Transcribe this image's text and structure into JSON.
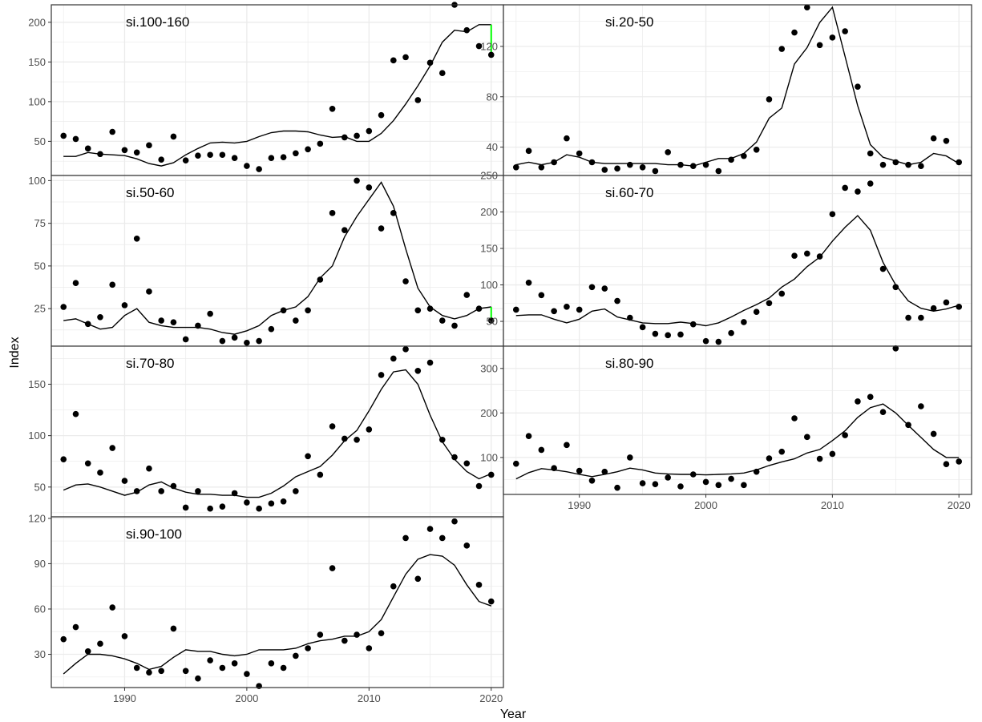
{
  "figure": {
    "xlabel": "Year",
    "ylabel": "Index"
  },
  "colors": {
    "points": "#000000",
    "fit_line": "#000000",
    "residual_segment": "#00ff00",
    "grid": "#ebebeb",
    "panel_border": "#333333"
  },
  "chart_data": [
    {
      "type": "scatter",
      "title": "si.100-160",
      "xlim": [
        1984,
        2021
      ],
      "ylim": [
        7,
        222
      ],
      "y_ticks": [
        50,
        100,
        150,
        200
      ],
      "x_ticks": [
        1990,
        2000,
        2010,
        2020
      ],
      "x": [
        1985,
        1986,
        1987,
        1988,
        1989,
        1990,
        1991,
        1992,
        1993,
        1994,
        1995,
        1996,
        1997,
        1998,
        1999,
        2000,
        2001,
        2002,
        2003,
        2004,
        2005,
        2006,
        2007,
        2008,
        2009,
        2010,
        2011,
        2012,
        2013,
        2014,
        2015,
        2016,
        2017,
        2018,
        2019,
        2020
      ],
      "series": [
        {
          "kind": "points",
          "values": [
            57,
            53,
            41,
            34,
            62,
            39,
            36,
            45,
            27,
            56,
            26,
            32,
            33,
            33,
            29,
            19,
            15,
            29,
            30,
            35,
            40,
            47,
            91,
            55,
            57,
            63,
            83,
            152,
            156,
            102,
            149,
            136,
            222,
            190,
            170,
            159
          ]
        },
        {
          "kind": "line",
          "values": [
            31,
            31,
            36,
            34,
            33,
            32,
            28,
            22,
            19,
            23,
            33,
            41,
            48,
            49,
            48,
            50,
            56,
            61,
            63,
            63,
            62,
            58,
            55,
            56,
            50,
            50,
            60,
            76,
            97,
            120,
            145,
            175,
            190,
            188,
            197,
            197
          ]
        }
      ],
      "highlight": {
        "x": 2020,
        "from": 197,
        "to": 159
      }
    },
    {
      "type": "scatter",
      "title": "si.20-50",
      "xlim": [
        1984,
        2021
      ],
      "ylim": [
        17.5,
        153
      ],
      "y_ticks": [
        40,
        80,
        120
      ],
      "x_ticks": [
        1990,
        2000,
        2010,
        2020
      ],
      "x": [
        1985,
        1986,
        1987,
        1988,
        1989,
        1990,
        1991,
        1992,
        1993,
        1994,
        1995,
        1996,
        1997,
        1998,
        1999,
        2000,
        2001,
        2002,
        2003,
        2004,
        2005,
        2006,
        2007,
        2008,
        2009,
        2010,
        2011,
        2012,
        2013,
        2014,
        2015,
        2016,
        2017,
        2018,
        2019,
        2020
      ],
      "series": [
        {
          "kind": "points",
          "values": [
            24,
            37,
            24,
            28,
            47,
            35,
            28,
            22,
            23,
            26,
            24,
            21,
            36,
            26,
            25,
            26,
            21,
            30,
            33,
            38,
            78,
            118,
            131,
            151,
            121,
            127,
            132,
            88,
            35,
            26,
            28,
            26,
            25,
            47,
            45,
            28
          ]
        },
        {
          "kind": "line",
          "values": [
            26,
            28,
            26,
            28,
            34,
            32,
            28,
            27,
            27,
            27,
            27,
            27,
            26,
            26,
            25,
            28,
            31,
            31,
            35,
            44,
            63,
            71,
            106,
            119,
            139,
            151,
            112,
            73,
            42,
            32,
            29,
            26,
            28,
            35,
            33,
            27
          ]
        }
      ]
    },
    {
      "type": "scatter",
      "title": "si.50-60",
      "xlim": [
        1984,
        2021
      ],
      "ylim": [
        3,
        103
      ],
      "y_ticks": [
        25,
        50,
        75,
        100
      ],
      "x_ticks": [
        1990,
        2000,
        2010,
        2020
      ],
      "x": [
        1985,
        1986,
        1987,
        1988,
        1989,
        1990,
        1991,
        1992,
        1993,
        1994,
        1995,
        1996,
        1997,
        1998,
        1999,
        2000,
        2001,
        2002,
        2003,
        2004,
        2005,
        2006,
        2007,
        2008,
        2009,
        2010,
        2011,
        2012,
        2013,
        2014,
        2015,
        2016,
        2017,
        2018,
        2019,
        2020
      ],
      "series": [
        {
          "kind": "points",
          "values": [
            26,
            40,
            16,
            20,
            39,
            27,
            66,
            35,
            18,
            17,
            7,
            15,
            22,
            6,
            8,
            5,
            6,
            13,
            24,
            18,
            24,
            42,
            81,
            71,
            100,
            96,
            72,
            81,
            41,
            24,
            25,
            18,
            15,
            33,
            25,
            18
          ]
        },
        {
          "kind": "line",
          "values": [
            18,
            19,
            16,
            13,
            14,
            21,
            25,
            17,
            15,
            14,
            14,
            14,
            13,
            11,
            10,
            12,
            15,
            21,
            24,
            26,
            32,
            43,
            50,
            67,
            79,
            89,
            99,
            85,
            60,
            37,
            26,
            21,
            19,
            21,
            25,
            26
          ]
        }
      ],
      "highlight": {
        "x": 2020,
        "from": 26,
        "to": 18
      }
    },
    {
      "type": "scatter",
      "title": "si.60-70",
      "xlim": [
        1984,
        2021
      ],
      "ylim": [
        16,
        250
      ],
      "y_ticks": [
        50,
        100,
        150,
        200,
        250
      ],
      "x_ticks": [
        1990,
        2000,
        2010,
        2020
      ],
      "x": [
        1985,
        1986,
        1987,
        1988,
        1989,
        1990,
        1991,
        1992,
        1993,
        1994,
        1995,
        1996,
        1997,
        1998,
        1999,
        2000,
        2001,
        2002,
        2003,
        2004,
        2005,
        2006,
        2007,
        2008,
        2009,
        2010,
        2011,
        2012,
        2013,
        2014,
        2015,
        2016,
        2017,
        2018,
        2019,
        2020
      ],
      "series": [
        {
          "kind": "points",
          "values": [
            66,
            103,
            86,
            64,
            70,
            66,
            97,
            95,
            78,
            55,
            42,
            33,
            31,
            32,
            46,
            23,
            22,
            34,
            49,
            63,
            75,
            88,
            140,
            143,
            139,
            197,
            233,
            228,
            239,
            122,
            97,
            55,
            55,
            68,
            76,
            70
          ]
        },
        {
          "kind": "line",
          "values": [
            58,
            59,
            59,
            53,
            48,
            53,
            64,
            67,
            56,
            52,
            48,
            47,
            47,
            49,
            47,
            44,
            48,
            56,
            65,
            73,
            82,
            97,
            108,
            125,
            138,
            160,
            179,
            195,
            175,
            131,
            100,
            78,
            68,
            64,
            67,
            72
          ]
        }
      ]
    },
    {
      "type": "scatter",
      "title": "si.70-80",
      "xlim": [
        1984,
        2021
      ],
      "ylim": [
        21,
        187
      ],
      "y_ticks": [
        50,
        100,
        150
      ],
      "x_ticks": [
        1990,
        2000,
        2010,
        2020
      ],
      "x": [
        1985,
        1986,
        1987,
        1988,
        1989,
        1990,
        1991,
        1992,
        1993,
        1994,
        1995,
        1996,
        1997,
        1998,
        1999,
        2000,
        2001,
        2002,
        2003,
        2004,
        2005,
        2006,
        2007,
        2008,
        2009,
        2010,
        2011,
        2012,
        2013,
        2014,
        2015,
        2016,
        2017,
        2018,
        2019,
        2020
      ],
      "series": [
        {
          "kind": "points",
          "values": [
            77,
            121,
            73,
            64,
            88,
            56,
            46,
            68,
            46,
            51,
            30,
            46,
            29,
            31,
            44,
            35,
            29,
            34,
            36,
            46,
            80,
            62,
            109,
            97,
            96,
            106,
            159,
            175,
            184,
            163,
            171,
            96,
            79,
            73,
            51,
            62
          ]
        },
        {
          "kind": "line",
          "values": [
            47,
            52,
            53,
            50,
            46,
            42,
            45,
            52,
            55,
            49,
            45,
            43,
            43,
            42,
            42,
            40,
            40,
            44,
            51,
            60,
            65,
            70,
            81,
            95,
            105,
            124,
            145,
            162,
            164,
            150,
            120,
            94,
            77,
            65,
            58,
            63
          ]
        }
      ]
    },
    {
      "type": "scatter",
      "title": "si.80-90",
      "xlim": [
        1984,
        2021
      ],
      "ylim": [
        17,
        350
      ],
      "y_ticks": [
        100,
        200,
        300
      ],
      "x_ticks": [
        1990,
        2000,
        2010,
        2020
      ],
      "x": [
        1985,
        1986,
        1987,
        1988,
        1989,
        1990,
        1991,
        1992,
        1993,
        1994,
        1995,
        1996,
        1997,
        1998,
        1999,
        2000,
        2001,
        2002,
        2003,
        2004,
        2005,
        2006,
        2007,
        2008,
        2009,
        2010,
        2011,
        2012,
        2013,
        2014,
        2015,
        2016,
        2017,
        2018,
        2019,
        2020
      ],
      "series": [
        {
          "kind": "points",
          "values": [
            86,
            148,
            117,
            76,
            128,
            70,
            48,
            68,
            32,
            100,
            42,
            40,
            55,
            35,
            62,
            45,
            38,
            52,
            38,
            68,
            98,
            113,
            188,
            146,
            97,
            108,
            150,
            226,
            236,
            202,
            345,
            173,
            215,
            153,
            85,
            91
          ]
        },
        {
          "kind": "line",
          "values": [
            52,
            66,
            75,
            72,
            68,
            62,
            57,
            62,
            68,
            76,
            72,
            65,
            63,
            62,
            62,
            61,
            62,
            63,
            65,
            72,
            82,
            90,
            97,
            110,
            118,
            138,
            160,
            190,
            212,
            220,
            200,
            172,
            145,
            118,
            100,
            100
          ]
        }
      ]
    },
    {
      "type": "scatter",
      "title": "si.90-100",
      "xlim": [
        1984,
        2021
      ],
      "ylim": [
        8,
        121
      ],
      "y_ticks": [
        30,
        60,
        90,
        120
      ],
      "x_ticks": [
        1990,
        2000,
        2010,
        2020
      ],
      "x": [
        1985,
        1986,
        1987,
        1988,
        1989,
        1990,
        1991,
        1992,
        1993,
        1994,
        1995,
        1996,
        1997,
        1998,
        1999,
        2000,
        2001,
        2002,
        2003,
        2004,
        2005,
        2006,
        2007,
        2008,
        2009,
        2010,
        2011,
        2012,
        2013,
        2014,
        2015,
        2016,
        2017,
        2018,
        2019,
        2020
      ],
      "series": [
        {
          "kind": "points",
          "values": [
            40,
            48,
            32,
            37,
            61,
            42,
            21,
            18,
            19,
            47,
            19,
            14,
            26,
            21,
            24,
            17,
            9,
            24,
            21,
            29,
            34,
            43,
            87,
            39,
            43,
            34,
            44,
            75,
            107,
            80,
            113,
            107,
            118,
            102,
            76,
            65
          ]
        },
        {
          "kind": "line",
          "values": [
            17,
            24,
            30,
            30,
            29,
            27,
            24,
            20,
            22,
            28,
            33,
            32,
            32,
            30,
            29,
            30,
            33,
            33,
            33,
            34,
            37,
            39,
            40,
            42,
            42,
            45,
            53,
            68,
            83,
            93,
            96,
            95,
            89,
            76,
            65,
            62
          ]
        }
      ]
    }
  ]
}
